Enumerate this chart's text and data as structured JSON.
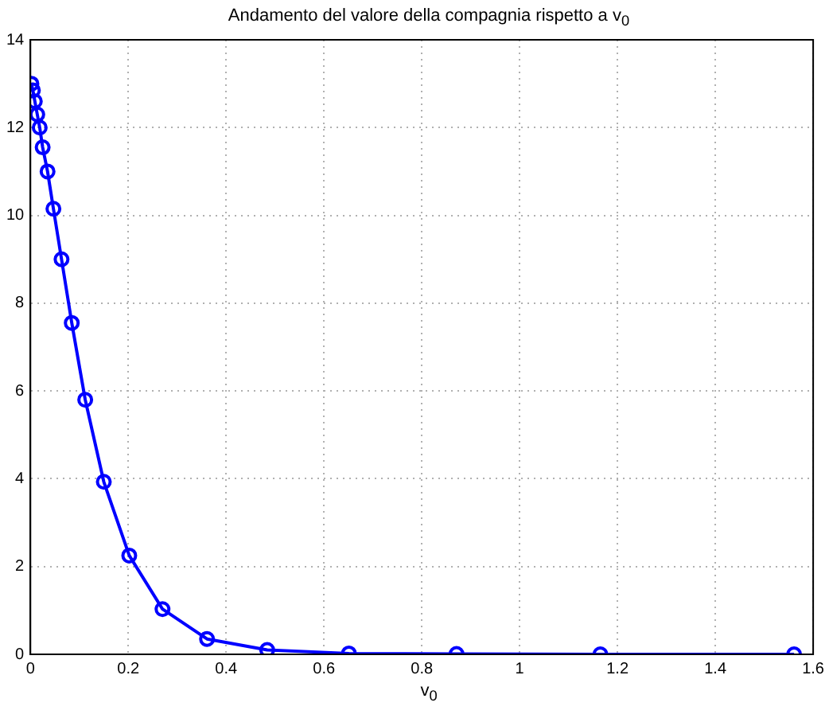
{
  "chart_data": {
    "type": "line",
    "title": "Andamento del valore della compagnia rispetto a v$_{0}$",
    "xlabel": "v$_{0}$",
    "x": [
      0.002,
      0.005,
      0.009,
      0.014,
      0.019,
      0.025,
      0.035,
      0.047,
      0.0636,
      0.0845,
      0.112,
      0.15,
      0.202,
      0.27,
      0.361,
      0.484,
      0.651,
      0.871,
      1.165,
      1.561
    ],
    "series": [
      {
        "color": "#0000ff",
        "values": [
          13.0,
          12.85,
          12.6,
          12.3,
          12.0,
          11.55,
          11.0,
          10.15,
          9.0,
          7.55,
          5.8,
          3.93,
          2.25,
          1.03,
          0.35,
          0.1,
          0.02,
          0.01,
          0.0,
          0.0
        ]
      }
    ],
    "xlim": [
      0,
      1.6
    ],
    "xticks": [
      0,
      0.2,
      0.4,
      0.6,
      0.8,
      1,
      1.2,
      1.4,
      1.6
    ],
    "ylim": [
      0,
      14
    ],
    "yticks": [
      0,
      2,
      4,
      6,
      8,
      10,
      12,
      14
    ],
    "grid": true,
    "legend": false,
    "marker": "circle",
    "line_style": "solid"
  }
}
